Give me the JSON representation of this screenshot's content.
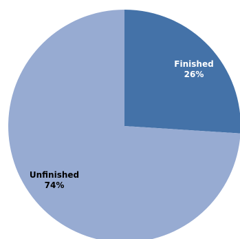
{
  "chart_data": {
    "type": "pie",
    "title": "",
    "slices": [
      {
        "label": "Finished",
        "value": 26,
        "percent_label": "26%",
        "color": "#4472a8",
        "text_color": "#ffffff"
      },
      {
        "label": "Unfinished",
        "value": 74,
        "percent_label": "74%",
        "color": "#97abd2",
        "text_color": "#000000"
      }
    ],
    "legend": "none",
    "start": "top",
    "direction": "clockwise"
  }
}
